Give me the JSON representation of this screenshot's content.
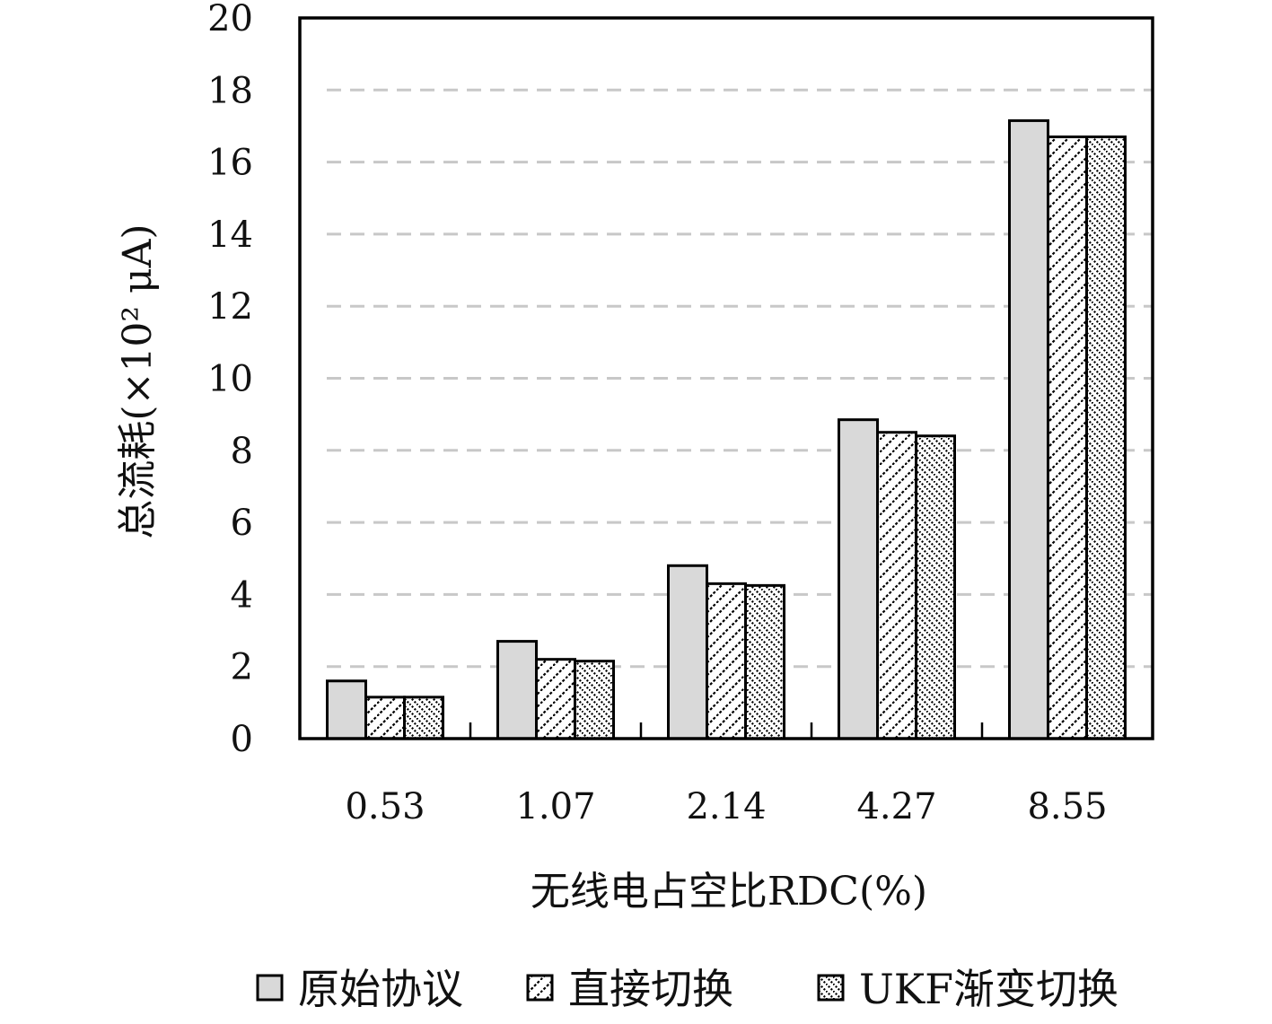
{
  "chart_data": {
    "type": "bar",
    "title": "",
    "xlabel": "无线电占空比RDC(%)",
    "ylabel": "总流耗(×10² μA)",
    "categories": [
      "0.53",
      "1.07",
      "2.14",
      "4.27",
      "8.55"
    ],
    "series": [
      {
        "name": "原始协议",
        "values": [
          1.6,
          2.7,
          4.8,
          8.85,
          17.15
        ],
        "fill": "#d9d9d9",
        "pattern": "solid"
      },
      {
        "name": "直接切换",
        "values": [
          1.15,
          2.2,
          4.3,
          8.5,
          16.7
        ],
        "fill": "#ffffff",
        "pattern": "diagonal"
      },
      {
        "name": "UKF渐变切换",
        "values": [
          1.15,
          2.15,
          4.25,
          8.4,
          16.7
        ],
        "fill": "#ffffff",
        "pattern": "checker-diagonal"
      }
    ],
    "yticks": [
      "0",
      "2",
      "4",
      "6",
      "8",
      "10",
      "12",
      "14",
      "16",
      "18",
      "20"
    ],
    "ylim": [
      0,
      20
    ],
    "grid": "horizontal-dashed",
    "legend_position": "bottom"
  }
}
